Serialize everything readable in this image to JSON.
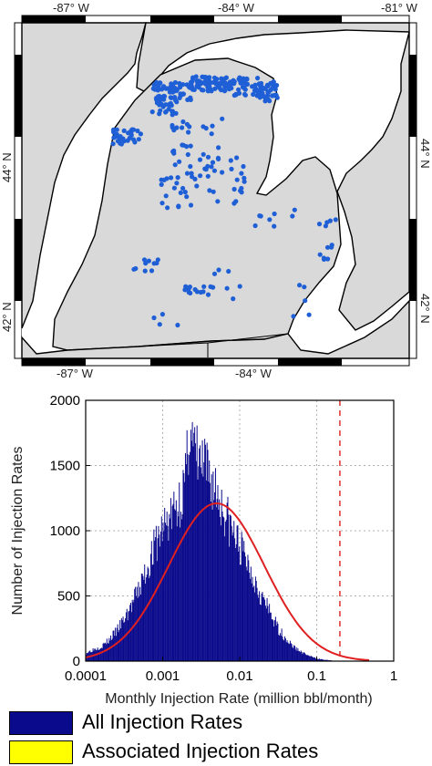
{
  "map": {
    "lon_labels_top": [
      "-87° W",
      "-84° W",
      "-81° W"
    ],
    "lon_labels_bottom": [
      "-87° W",
      "-84° W"
    ],
    "lat_labels_left": [
      "44° N",
      "42° N"
    ],
    "lat_labels_right": [
      "44° N",
      "42° N"
    ],
    "land_color": "#d9d9d9",
    "water_color": "#ffffff",
    "point_color": "#1f5fd6"
  },
  "chart_data": {
    "type": "bar",
    "x_scale": "log",
    "xlabel": "Monthly Injection Rate (million bbl/month)",
    "ylabel": "Number of Injection Rates",
    "xticks": [
      "0.0001",
      "0.001",
      "0.01",
      "0.1",
      "1"
    ],
    "yticks": [
      "0",
      "500",
      "1000",
      "1500",
      "2000"
    ],
    "xlim": [
      0.0001,
      1
    ],
    "ylim": [
      0,
      2000
    ],
    "grid": true,
    "bar_color": "#0a0a8c",
    "fit_color": "#e02020",
    "threshold_line_x": 0.2,
    "fit_curve": {
      "type": "lognormal",
      "peak_x": 0.005,
      "peak_y": 1210
    },
    "series": [
      {
        "name": "All Injection Rates",
        "log10_x": [
          -4.0,
          -3.9,
          -3.8,
          -3.7,
          -3.6,
          -3.5,
          -3.4,
          -3.3,
          -3.2,
          -3.1,
          -3.0,
          -2.9,
          -2.8,
          -2.7,
          -2.65,
          -2.6,
          -2.5,
          -2.4,
          -2.3,
          -2.2,
          -2.1,
          -2.0,
          -1.9,
          -1.8,
          -1.7,
          -1.6,
          -1.5,
          -1.4,
          -1.3,
          -1.2,
          -1.1,
          -1.0,
          -0.9,
          -0.8
        ],
        "values": [
          60,
          90,
          110,
          160,
          230,
          320,
          430,
          560,
          720,
          880,
          1020,
          1100,
          1200,
          1380,
          1850,
          1600,
          1500,
          1420,
          1300,
          1150,
          1000,
          880,
          760,
          620,
          480,
          360,
          250,
          170,
          110,
          70,
          40,
          20,
          10,
          5
        ]
      },
      {
        "name": "Associated Injection Rates",
        "values": []
      }
    ]
  },
  "legend": {
    "items": [
      {
        "label": "All Injection Rates",
        "color": "#0a0a8c"
      },
      {
        "label": "Associated Injection Rates",
        "color": "#ffff00"
      }
    ]
  }
}
